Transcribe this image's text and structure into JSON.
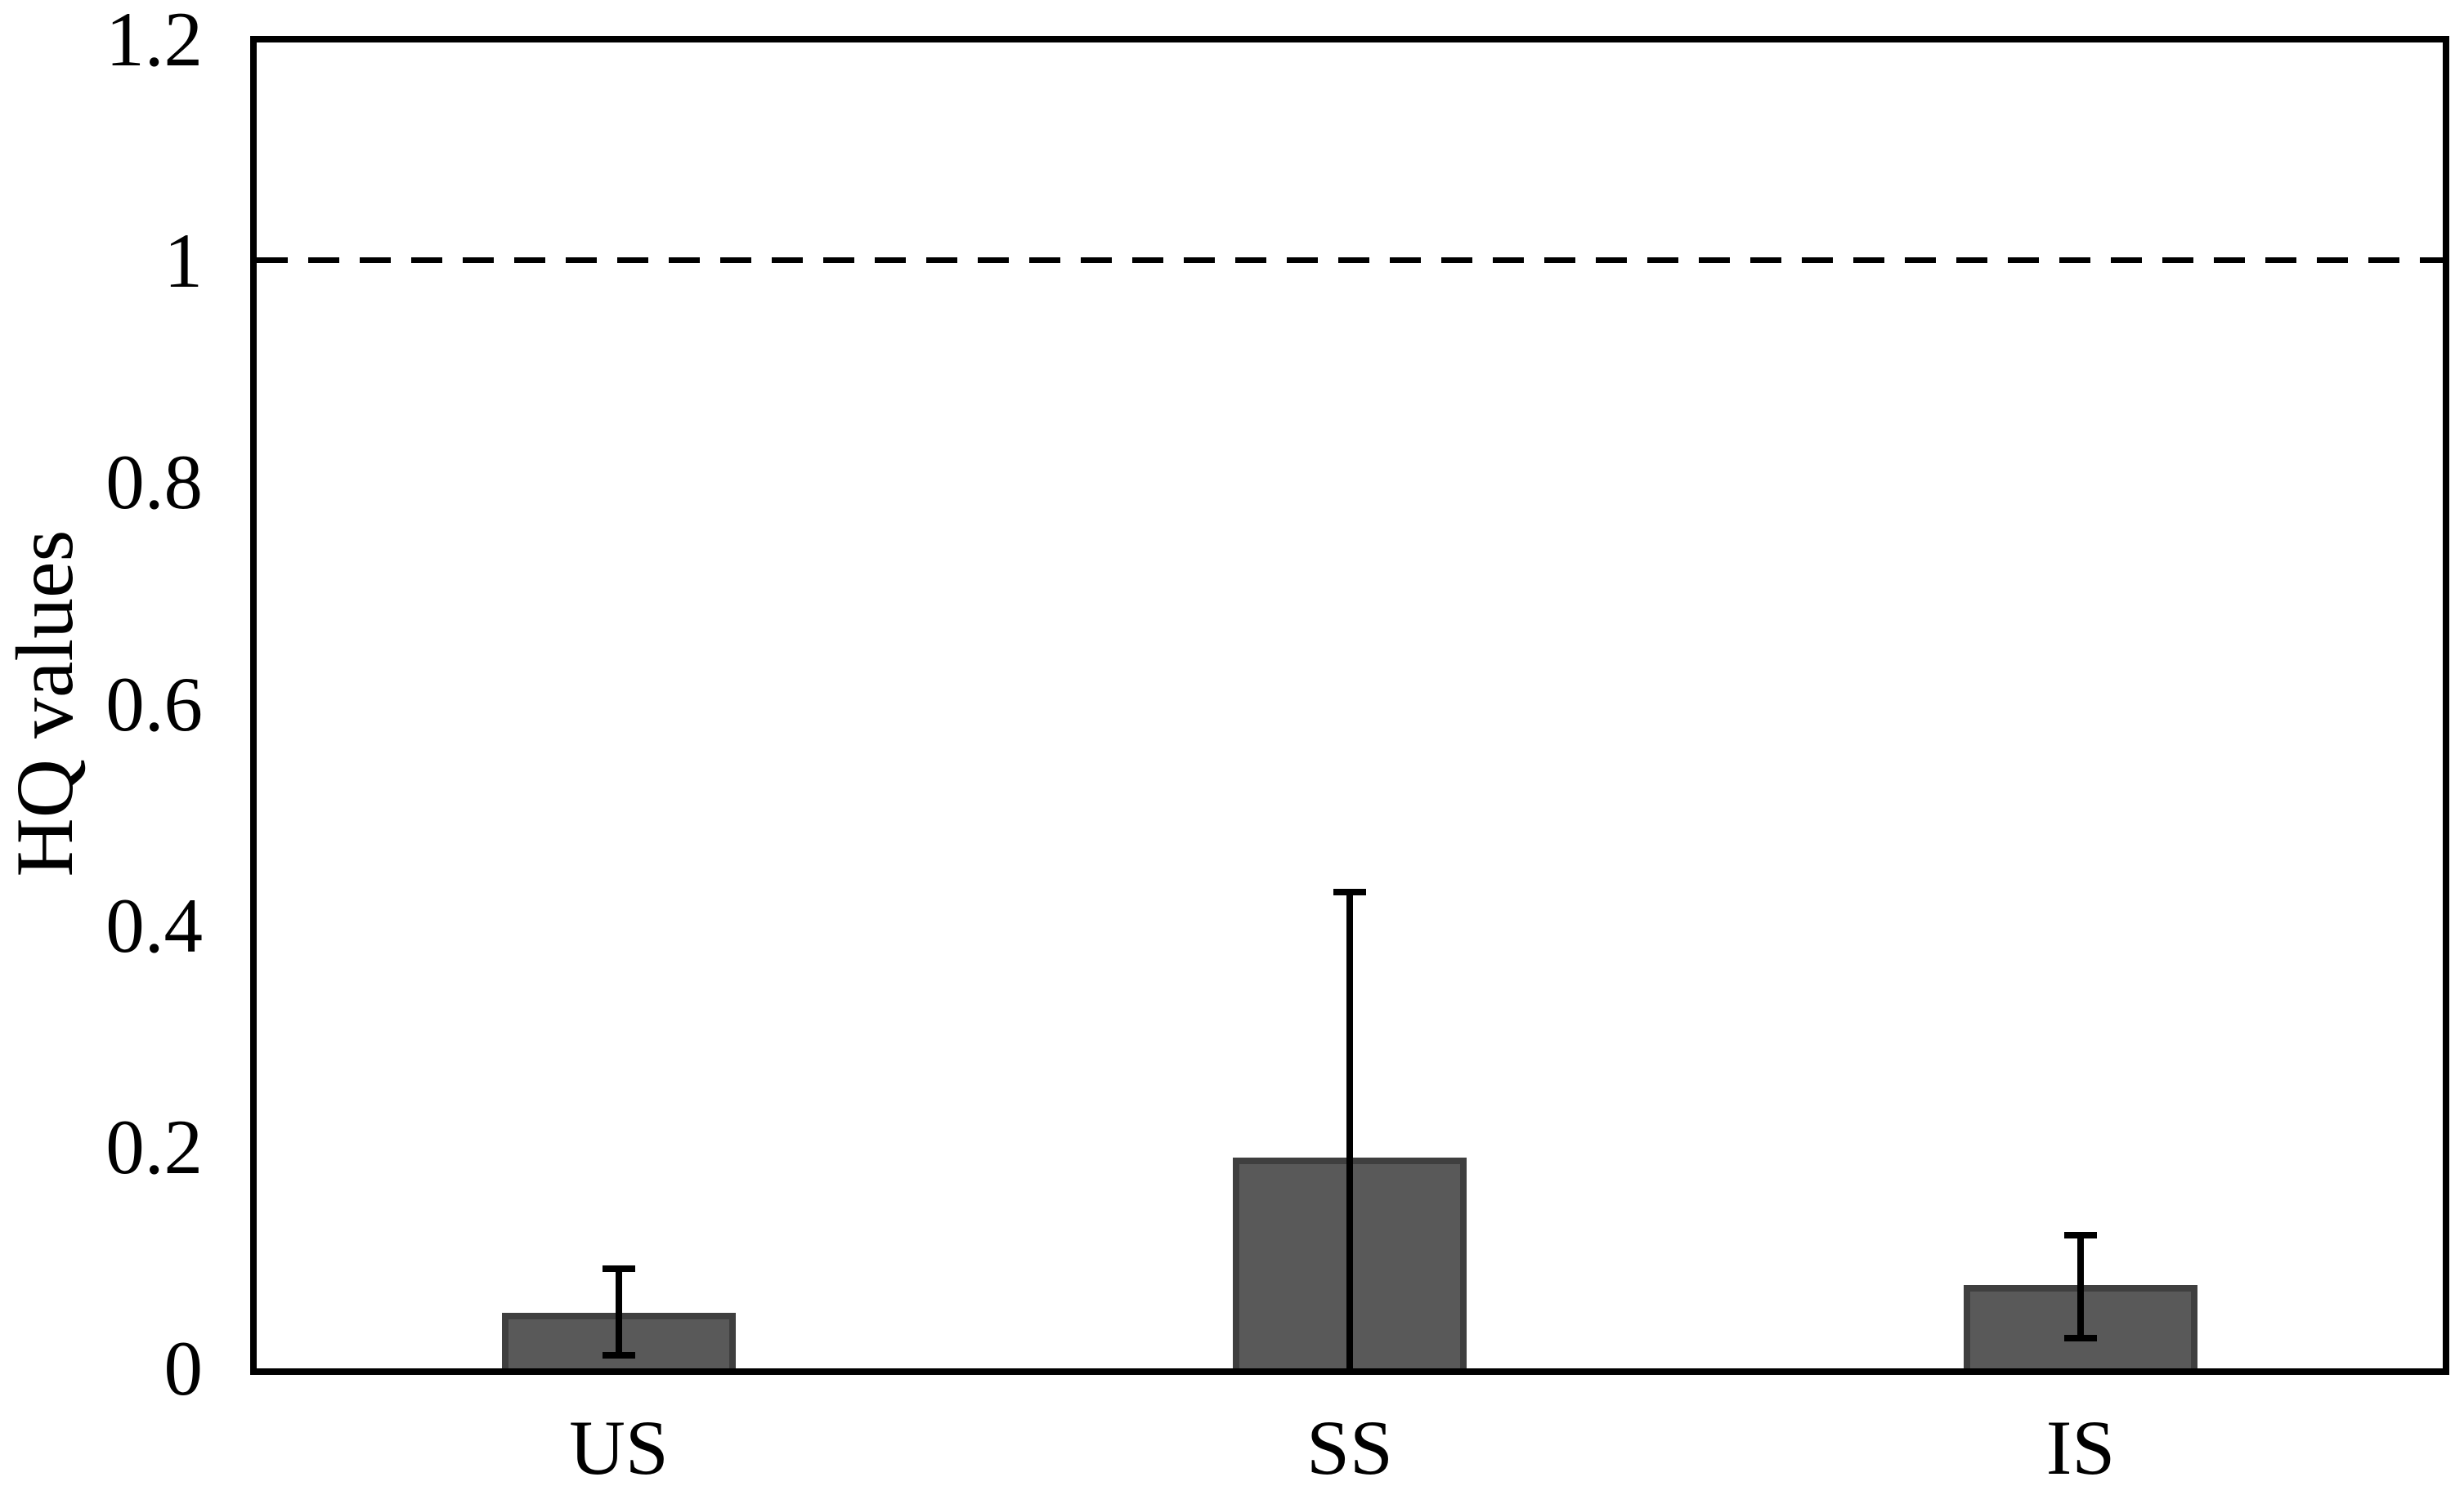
{
  "chart_data": {
    "type": "bar",
    "title": "",
    "xlabel": "",
    "ylabel": "HQ values",
    "categories": [
      "US",
      "SS",
      "IS"
    ],
    "values": [
      0.05,
      0.19,
      0.075
    ],
    "error_top": [
      0.09,
      0.43,
      0.12
    ],
    "error_bottom": [
      0.012,
      null,
      0.027
    ],
    "error_note": "SS lower whisker extends to the baseline and is clipped (no bottom cap shown)",
    "ylim": [
      0,
      1.2
    ],
    "ytick_values": [
      0,
      0.2,
      0.4,
      0.6,
      0.8,
      1,
      1.2
    ],
    "ytick_labels": [
      "0",
      "0.2",
      "0.4",
      "0.6",
      "0.8",
      "1",
      "1.2"
    ],
    "threshold_line": {
      "value": 1,
      "style": "dashed",
      "color": "#000000"
    },
    "grid": false,
    "legend": "none",
    "bar_fill_color": "#595959",
    "bar_border_color": "#3F3F3F",
    "axis_color": "#000000",
    "background_color": "#FFFFFF"
  }
}
